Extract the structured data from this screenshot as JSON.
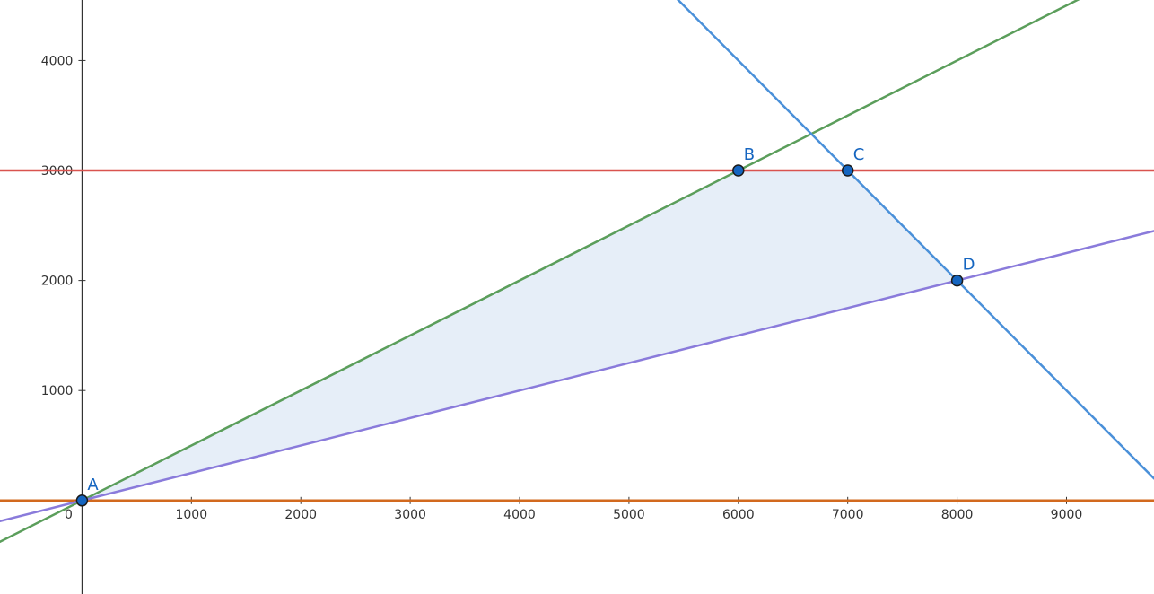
{
  "chart_data": {
    "type": "line",
    "title": "",
    "xlabel": "",
    "ylabel": "",
    "x_ticks": [
      0,
      1000,
      2000,
      3000,
      4000,
      5000,
      6000,
      7000,
      8000,
      9000
    ],
    "y_ticks": [
      1000,
      2000,
      3000,
      4000
    ],
    "origin_label": "0",
    "xlim": [
      -750,
      9800
    ],
    "ylim": [
      -850,
      4550
    ],
    "grid": false,
    "lines": [
      {
        "id": "line-y-3000",
        "color": "#D9534F",
        "slope": 0,
        "intercept": 3000
      },
      {
        "id": "line-y-0",
        "color": "#D2691E",
        "slope": 0,
        "intercept": 0
      },
      {
        "id": "line-y-half-x",
        "color": "#5B9E5B",
        "slope": 0.5,
        "intercept": 0
      },
      {
        "id": "line-y-quarter-x",
        "color": "#8A7BDB",
        "slope": 0.25,
        "intercept": 0
      },
      {
        "id": "line-x-plus-y-10000",
        "color": "#4A90D9",
        "slope": -1,
        "intercept": 10000
      }
    ],
    "feasible_region": {
      "color": "#E6EEF8",
      "vertices": [
        "A",
        "B",
        "C",
        "D"
      ]
    },
    "points": [
      {
        "label": "A",
        "x": 0,
        "y": 0
      },
      {
        "label": "B",
        "x": 6000,
        "y": 3000
      },
      {
        "label": "C",
        "x": 7000,
        "y": 3000
      },
      {
        "label": "D",
        "x": 8000,
        "y": 2000
      }
    ],
    "point_color": "#1565C0"
  }
}
